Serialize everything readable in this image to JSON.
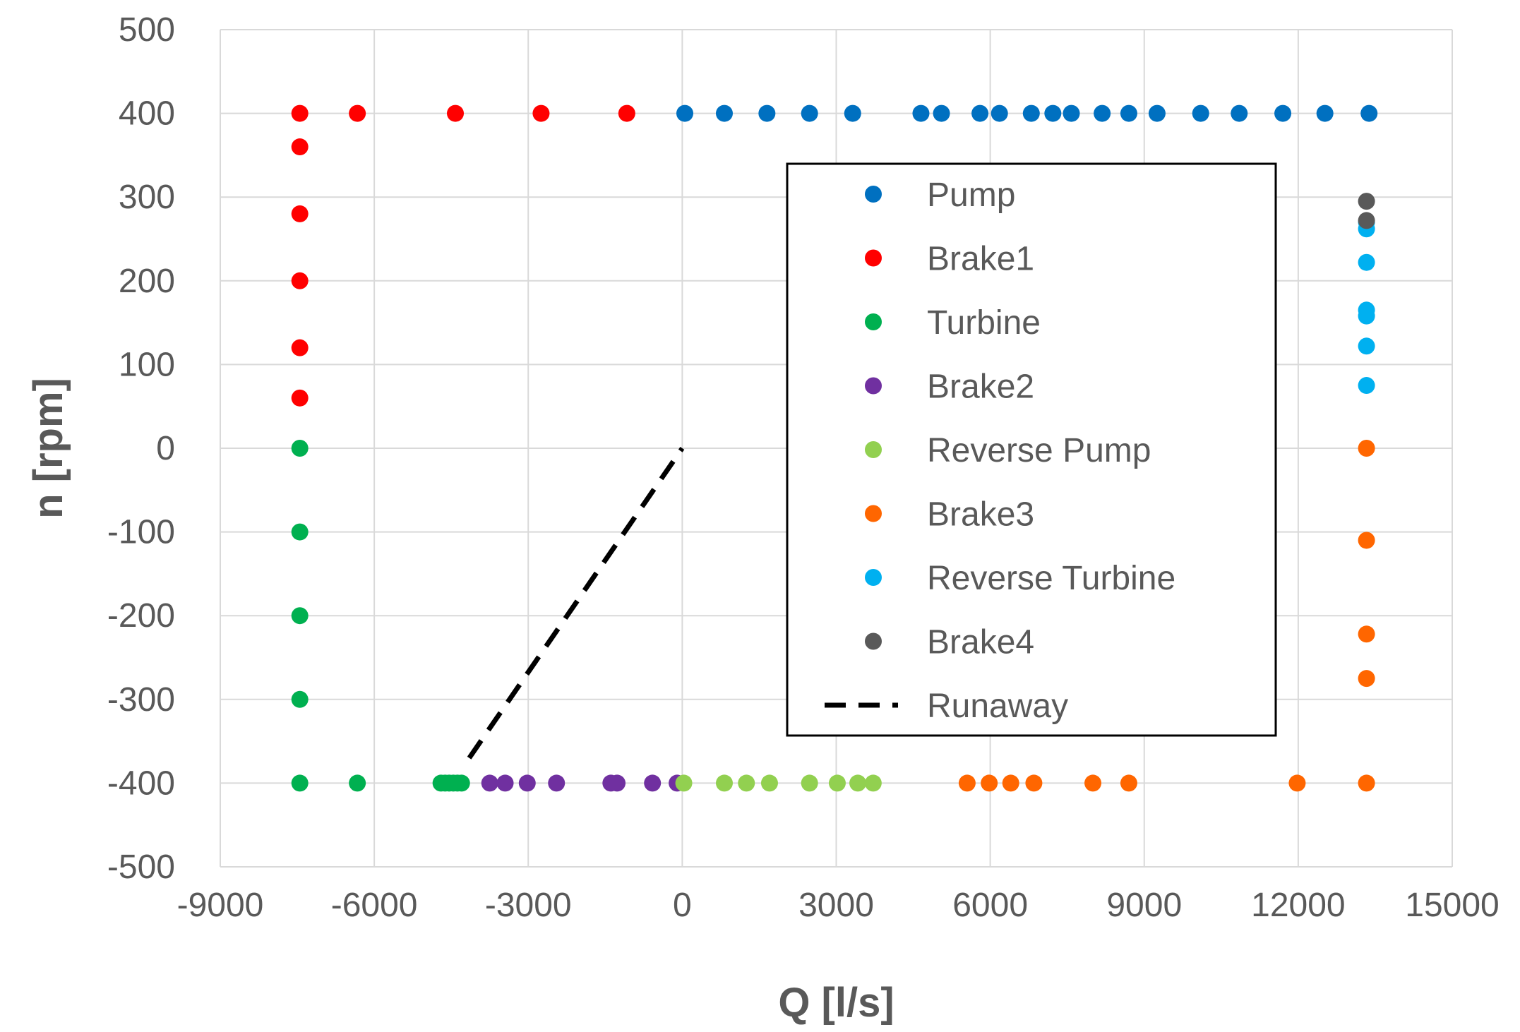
{
  "chart_data": {
    "type": "scatter",
    "title": "",
    "xlabel": "Q [l/s]",
    "ylabel": "n [rpm]",
    "xlim": [
      -9000,
      15000
    ],
    "ylim": [
      -500,
      500
    ],
    "xticks": [
      -9000,
      -6000,
      -3000,
      0,
      3000,
      6000,
      9000,
      12000,
      15000
    ],
    "yticks": [
      500,
      400,
      300,
      200,
      100,
      0,
      -100,
      -200,
      -300,
      -400,
      -500
    ],
    "xtick_labels": [
      "-9000",
      "-6000",
      "-3000",
      "0",
      "3000",
      "6000",
      "9000",
      "12000",
      "15000"
    ],
    "ytick_labels": [
      "500",
      "400",
      "300",
      "200",
      "100",
      "0",
      "-100",
      "-200",
      "-300",
      "-400",
      "-500"
    ],
    "grid": true,
    "legend_position": "right",
    "series": [
      {
        "name": "Pump",
        "color": "#0070c0",
        "mode": "markers",
        "x": [
          50,
          820,
          1650,
          2480,
          3320,
          4650,
          5050,
          5800,
          6180,
          6800,
          7220,
          7580,
          8180,
          8700,
          9250,
          10100,
          10850,
          11700,
          12520,
          13380
        ],
        "y": [
          400,
          400,
          400,
          400,
          400,
          400,
          400,
          400,
          400,
          400,
          400,
          400,
          400,
          400,
          400,
          400,
          400,
          400,
          400,
          400
        ]
      },
      {
        "name": "Brake1",
        "color": "#ff0000",
        "mode": "markers",
        "x": [
          -7450,
          -6330,
          -4420,
          -2750,
          -1080,
          -7450,
          -7450,
          -7450,
          -7450,
          -7450
        ],
        "y": [
          400,
          400,
          400,
          400,
          400,
          360,
          280,
          200,
          120,
          60
        ]
      },
      {
        "name": "Turbine",
        "color": "#00b050",
        "mode": "markers",
        "x": [
          -7450,
          -7450,
          -7450,
          -7450,
          -7450,
          -6330,
          -4700,
          -4620,
          -4540,
          -4460,
          -4380,
          -4300
        ],
        "y": [
          0,
          -100,
          -200,
          -300,
          -400,
          -400,
          -400,
          -400,
          -400,
          -400,
          -400,
          -400
        ]
      },
      {
        "name": "Brake2",
        "color": "#7030a0",
        "mode": "markers",
        "x": [
          -3750,
          -3450,
          -3020,
          -2450,
          -1390,
          -1270,
          -580,
          -100
        ],
        "y": [
          -400,
          -400,
          -400,
          -400,
          -400,
          -400,
          -400,
          -400
        ]
      },
      {
        "name": "Reverse Pump",
        "color": "#92d050",
        "mode": "markers",
        "x": [
          30,
          820,
          1250,
          1700,
          2480,
          3020,
          3420,
          3720
        ],
        "y": [
          -400,
          -400,
          -400,
          -400,
          -400,
          -400,
          -400,
          -400
        ]
      },
      {
        "name": "Brake3",
        "color": "#ff6600",
        "mode": "markers",
        "x": [
          5550,
          5980,
          6400,
          6850,
          8000,
          8700,
          11980,
          13330,
          13330,
          13330,
          13330,
          13330
        ],
        "y": [
          -400,
          -400,
          -400,
          -400,
          -400,
          -400,
          -400,
          -400,
          -275,
          -222,
          -110,
          0
        ]
      },
      {
        "name": "Reverse Turbine",
        "color": "#00b0f0",
        "mode": "markers",
        "x": [
          13330,
          13330,
          13330,
          13330,
          13330,
          13330,
          13330
        ],
        "y": [
          75,
          122,
          158,
          165,
          222,
          262,
          270
        ]
      },
      {
        "name": "Brake4",
        "color": "#595959",
        "mode": "markers",
        "x": [
          13330,
          13330
        ],
        "y": [
          272,
          295
        ]
      },
      {
        "name": "Runaway",
        "color": "#000000",
        "mode": "line",
        "dash": "dashed",
        "x": [
          -4150,
          0
        ],
        "y": [
          -370,
          0
        ]
      }
    ]
  }
}
